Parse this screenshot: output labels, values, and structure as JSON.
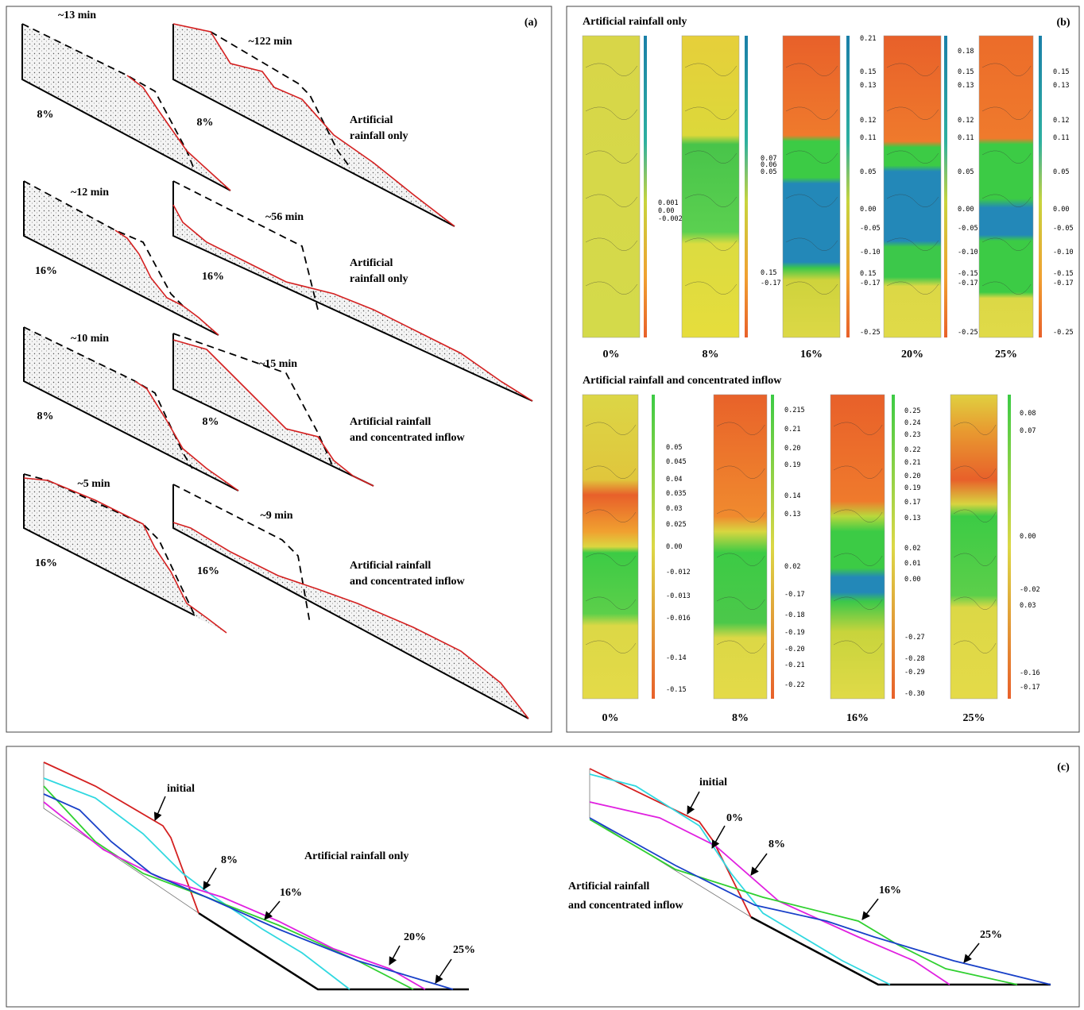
{
  "panel_a": {
    "label": "(a)",
    "rows": [
      {
        "left_time": "~13 min",
        "left_slope": "8%",
        "right_time": "~122 min",
        "right_slope": "8%",
        "caption": [
          "Artificial",
          "rainfall only"
        ]
      },
      {
        "left_time": "~12 min",
        "left_slope": "16%",
        "right_time": "~56 min",
        "right_slope": "16%",
        "caption": [
          "Artificial",
          "rainfall only"
        ]
      },
      {
        "left_time": "~10 min",
        "left_slope": "8%",
        "right_time": "~15 min",
        "right_slope": "8%",
        "caption": [
          "Artificial rainfall",
          "and concentrated inflow"
        ]
      },
      {
        "left_time": "~5 min",
        "left_slope": "16%",
        "right_time": "~9 min",
        "right_slope": "16%",
        "caption": [
          "Artificial rainfall",
          "and concentrated inflow"
        ]
      }
    ]
  },
  "panel_b": {
    "label": "(b)",
    "groups": [
      {
        "title": "Artificial rainfall only",
        "maps": [
          {
            "label": "0%",
            "scale": [
              "0.001",
              "0.00",
              "-0.002"
            ]
          },
          {
            "label": "8%",
            "scale": [
              "0.07",
              "0.06",
              "0.05",
              "0.15",
              "-0.17"
            ]
          },
          {
            "label": "16%",
            "scale": [
              "0.21",
              "0.15",
              "0.13",
              "0.12",
              "0.11",
              "0.05",
              "0.00",
              "-0.05",
              "-0.10",
              "0.15",
              "-0.17",
              "-0.25"
            ]
          },
          {
            "label": "20%",
            "scale": [
              "0.18",
              "0.15",
              "0.13",
              "0.12",
              "0.11",
              "0.05",
              "0.00",
              "-0.05",
              "-0.10",
              "-0.15",
              "-0.17",
              "-0.25"
            ]
          },
          {
            "label": "25%",
            "scale": [
              "0.15",
              "0.13",
              "0.12",
              "0.11",
              "0.05",
              "0.00",
              "-0.05",
              "-0.10",
              "-0.15",
              "-0.17",
              "-0.25"
            ]
          }
        ]
      },
      {
        "title": "Artificial rainfall and concentrated inflow",
        "maps": [
          {
            "label": "0%",
            "scale": [
              "0.05",
              "0.045",
              "0.04",
              "0.035",
              "0.03",
              "0.025",
              "0.00",
              "-0.012",
              "-0.013",
              "-0.016",
              "-0.14",
              "-0.15"
            ]
          },
          {
            "label": "8%",
            "scale": [
              "0.215",
              "0.21",
              "0.20",
              "0.19",
              "0.14",
              "0.13",
              "0.02",
              "-0.17",
              "-0.18",
              "-0.19",
              "-0.20",
              "-0.21",
              "-0.22"
            ]
          },
          {
            "label": "16%",
            "scale": [
              "0.25",
              "0.24",
              "0.23",
              "0.22",
              "0.21",
              "0.20",
              "0.19",
              "0.17",
              "0.13",
              "0.02",
              "0.01",
              "0.00",
              "-0.27",
              "-0.28",
              "-0.29",
              "-0.30"
            ]
          },
          {
            "label": "25%",
            "scale": [
              "0.08",
              "0.07",
              "0.00",
              "-0.02",
              "0.03",
              "-0.16",
              "-0.17"
            ]
          }
        ]
      }
    ]
  },
  "panel_c": {
    "label": "(c)",
    "plots": [
      {
        "caption": [
          "Artificial rainfall only"
        ],
        "curve_labels": [
          "initial",
          "8%",
          "16%",
          "20%",
          "25%"
        ]
      },
      {
        "caption": [
          "Artificial rainfall",
          "and concentrated inflow"
        ],
        "curve_labels": [
          "initial",
          "0%",
          "8%",
          "16%",
          "25%"
        ]
      }
    ]
  }
}
